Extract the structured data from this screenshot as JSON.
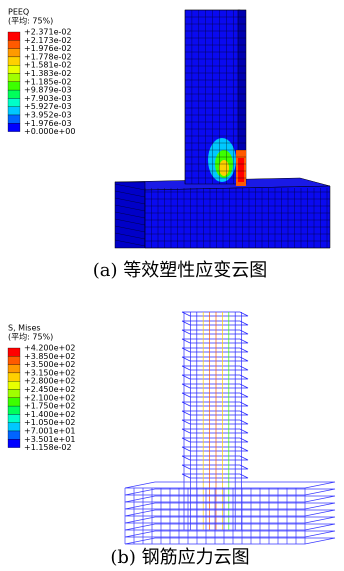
{
  "figures": [
    {
      "legend_title": "PEEQ",
      "legend_subtitle": "(平均: 75%)",
      "legend_labels": [
        "+2.371e-02",
        "+2.173e-02",
        "+1.976e-02",
        "+1.778e-02",
        "+1.581e-02",
        "+1.383e-02",
        "+1.185e-02",
        "+9.879e-03",
        "+7.903e-03",
        "+5.927e-03",
        "+3.952e-03",
        "+1.976e-03",
        "+0.000e+00"
      ],
      "legend_colors": [
        "#ff0000",
        "#ff5a00",
        "#ff9a00",
        "#ffd000",
        "#e8ff00",
        "#a0ff00",
        "#3cff00",
        "#00ff5a",
        "#00ffc8",
        "#00c8ff",
        "#0064ff",
        "#0000ff"
      ],
      "caption": "(a) 等效塑性应变云图"
    },
    {
      "legend_title": "S, Mises",
      "legend_subtitle": "(平均: 75%)",
      "legend_labels": [
        "+4.200e+02",
        "+3.850e+02",
        "+3.500e+02",
        "+3.150e+02",
        "+2.800e+02",
        "+2.450e+02",
        "+2.100e+02",
        "+1.750e+02",
        "+1.400e+02",
        "+1.050e+02",
        "+7.001e+01",
        "+3.501e+01",
        "+1.158e-02"
      ],
      "legend_colors": [
        "#ff0000",
        "#ff5a00",
        "#ff9a00",
        "#ffd000",
        "#e8ff00",
        "#a0ff00",
        "#3cff00",
        "#00ff5a",
        "#00ffc8",
        "#00c8ff",
        "#0064ff",
        "#0000ff"
      ],
      "caption": "(b) 钢筋应力云图"
    }
  ]
}
